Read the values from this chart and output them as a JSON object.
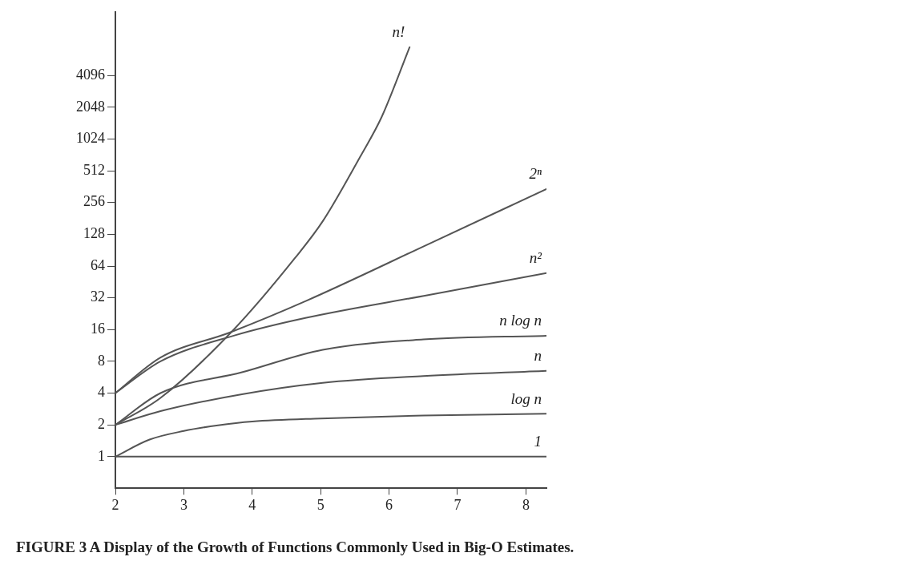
{
  "chart_data": {
    "type": "line",
    "annotations": [
      "FIGURE 3 A Display of the Growth of Functions Commonly Used in Big-O Estimates."
    ],
    "xlim": [
      2,
      8.3
    ],
    "xticks": [
      2,
      3,
      4,
      5,
      6,
      7,
      8
    ],
    "ylim": [
      0.5,
      16384
    ],
    "yticks": [
      1,
      2,
      4,
      8,
      16,
      32,
      64,
      128,
      256,
      512,
      1024,
      2048,
      4096
    ],
    "log": "y",
    "grid": false,
    "legend": false,
    "marker": "none",
    "line_style": "solid",
    "series": [
      {
        "name": "n!",
        "color": "#555555",
        "x": [
          2,
          2.66,
          3.73,
          4.63,
          5.03,
          5.58,
          5.89,
          6.3
        ],
        "values": [
          2,
          3.6,
          16,
          77,
          170,
          700,
          1650,
          7600
        ]
      },
      {
        "name": "2ⁿ",
        "color": "#555555",
        "x": [
          2,
          2.66,
          3.67,
          4.79,
          6.57,
          8.3
        ],
        "values": [
          4,
          8.7,
          15,
          30,
          103,
          344
        ]
      },
      {
        "name": "n²",
        "color": "#555555",
        "x": [
          2,
          2.66,
          3.73,
          4.79,
          6.57,
          8.3
        ],
        "values": [
          4,
          8,
          14,
          20.7,
          34,
          55
        ]
      },
      {
        "name": "n log n",
        "color": "#555555",
        "x": [
          2,
          2.66,
          3.85,
          5.03,
          6.5,
          8.3
        ],
        "values": [
          2,
          4,
          6.3,
          10.3,
          12.9,
          14
        ]
      },
      {
        "name": "n",
        "color": "#555555",
        "x": [
          2,
          2.66,
          3.85,
          5.03,
          6.5,
          8.3
        ],
        "values": [
          2,
          2.7,
          3.9,
          5,
          5.8,
          6.5
        ]
      },
      {
        "name": "log n",
        "color": "#555555",
        "x": [
          2,
          2.5,
          3,
          3.5,
          4,
          5,
          6.5,
          8.3
        ],
        "values": [
          1,
          1.45,
          1.75,
          1.98,
          2.15,
          2.3,
          2.45,
          2.55
        ]
      },
      {
        "name": "1",
        "color": "#555555",
        "x": [
          2,
          8.3
        ],
        "values": [
          1,
          1
        ]
      }
    ]
  }
}
